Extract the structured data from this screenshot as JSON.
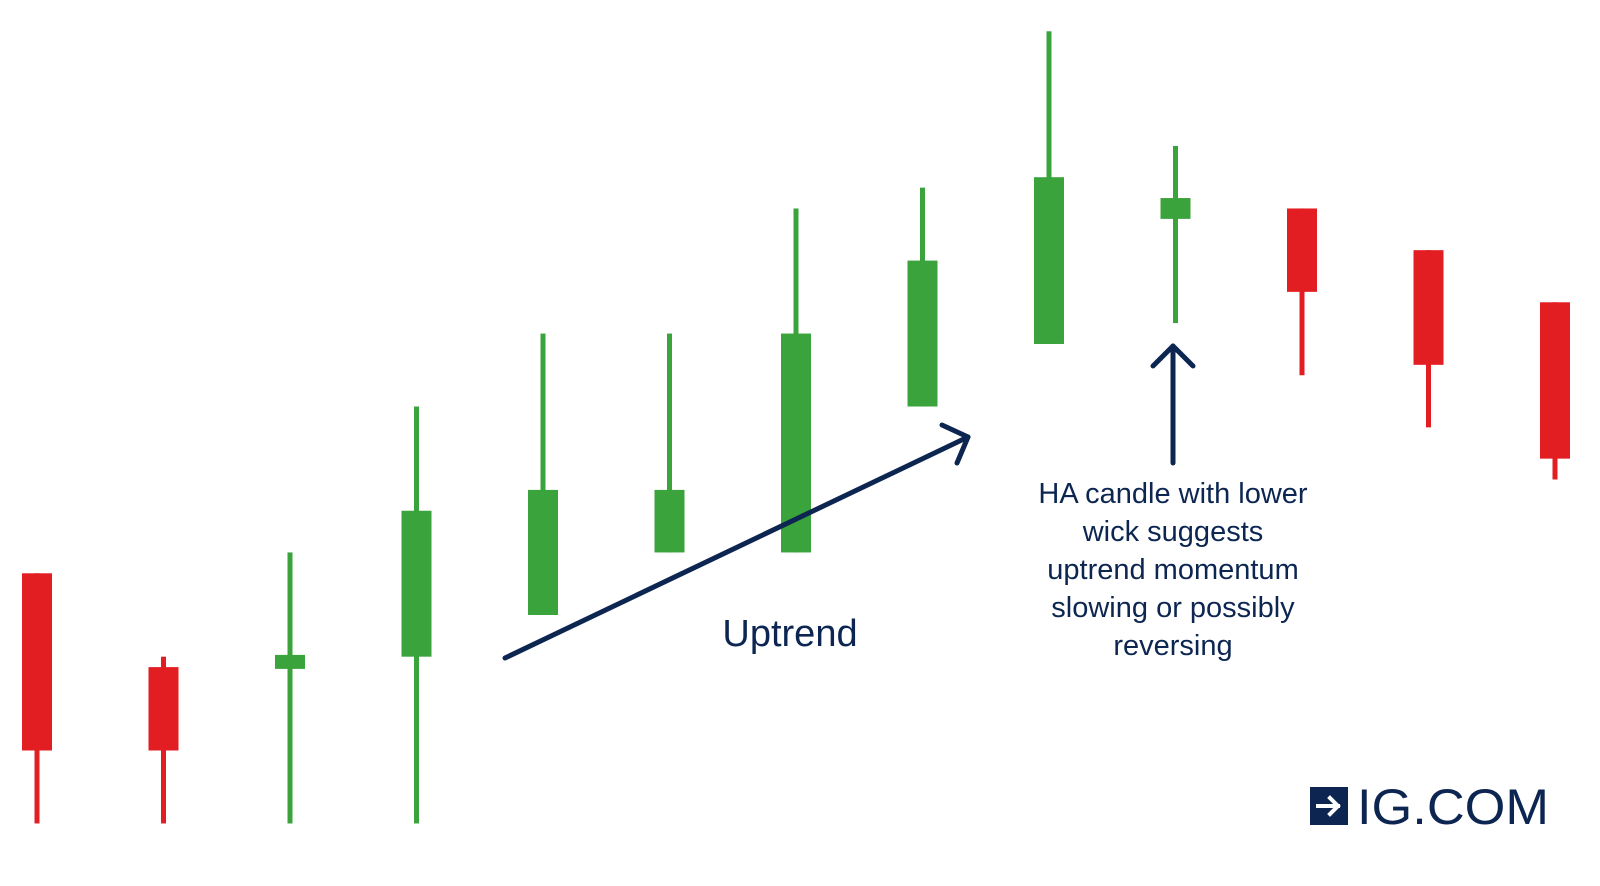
{
  "chart_data": {
    "type": "candlestick",
    "candles": [
      {
        "open": 100,
        "close": 83,
        "high": 100,
        "low": 76,
        "direction": "down"
      },
      {
        "open": 91,
        "close": 83,
        "high": 92,
        "low": 76,
        "direction": "down"
      },
      {
        "open": 91,
        "close": 92,
        "high": 102,
        "low": 76,
        "direction": "up"
      },
      {
        "open": 92,
        "close": 106,
        "high": 116,
        "low": 76,
        "direction": "up"
      },
      {
        "open": 96,
        "close": 108,
        "high": 123,
        "low": 96,
        "direction": "up"
      },
      {
        "open": 102,
        "close": 108,
        "high": 123,
        "low": 102,
        "direction": "up"
      },
      {
        "open": 102,
        "close": 123,
        "high": 135,
        "low": 102,
        "direction": "up"
      },
      {
        "open": 116,
        "close": 130,
        "high": 137,
        "low": 116,
        "direction": "up"
      },
      {
        "open": 122,
        "close": 138,
        "high": 152,
        "low": 122,
        "direction": "up"
      },
      {
        "open": 134,
        "close": 136,
        "high": 141,
        "low": 124,
        "direction": "up"
      },
      {
        "open": 135,
        "close": 127,
        "high": 135,
        "low": 119,
        "direction": "down"
      },
      {
        "open": 131,
        "close": 120,
        "high": 131,
        "low": 114,
        "direction": "down"
      },
      {
        "open": 126,
        "close": 111,
        "high": 126,
        "low": 109,
        "direction": "down"
      }
    ],
    "title": "",
    "xlabel": "",
    "ylabel": "",
    "ylim": [
      70,
      155
    ],
    "grid": false,
    "legend": "none",
    "annotations": {
      "uptrend_label": "Uptrend",
      "callout_lines": [
        "HA candle with lower",
        "wick suggests",
        "uptrend momentum",
        "slowing or possibly",
        "reversing"
      ],
      "callout_candle_index": 9
    }
  },
  "brand": {
    "logo_icon": "arrow-right-icon",
    "text": "IG.COM"
  },
  "colors": {
    "up": "#3ba33b",
    "down": "#e21e23",
    "annotation": "#0d2651",
    "brand": "#0d2651",
    "background": "#ffffff"
  }
}
